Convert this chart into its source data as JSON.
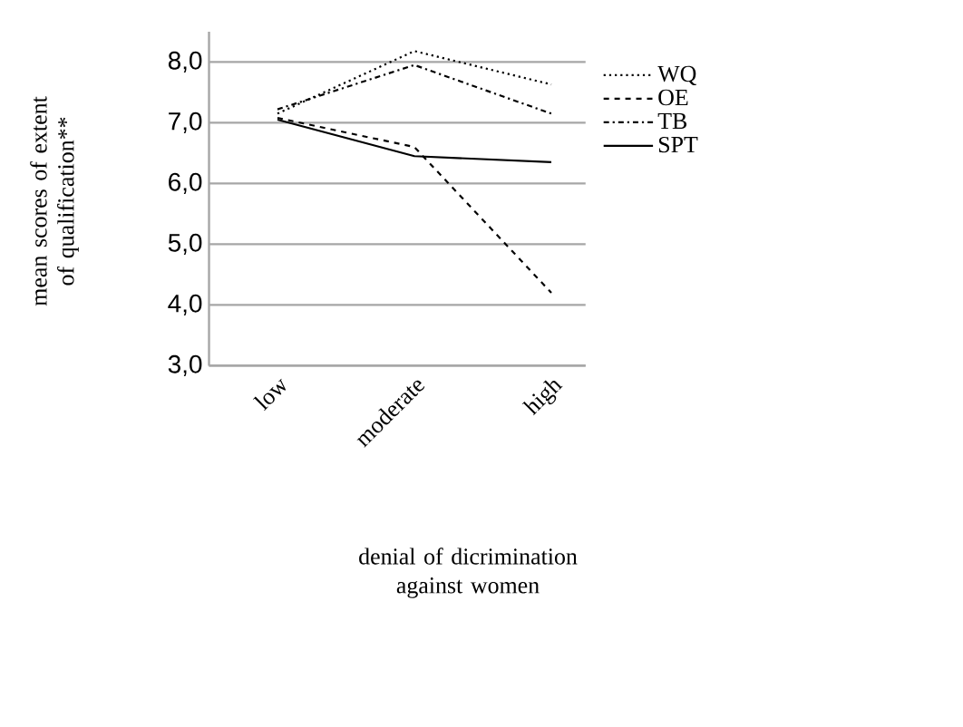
{
  "chart_data": {
    "type": "line",
    "ylabel": "mean scores of extent of qualification**",
    "xlabel": "denial of dicrimination against women",
    "categories": [
      "low",
      "moderate",
      "high"
    ],
    "series": [
      {
        "name": "WQ",
        "color": "#000000",
        "line_style": "dotted",
        "values": [
          7.15,
          8.18,
          7.63
        ]
      },
      {
        "name": "OE",
        "color": "#000000",
        "line_style": "dashed",
        "values": [
          7.08,
          6.6,
          4.2
        ]
      },
      {
        "name": "TB",
        "color": "#000000",
        "line_style": "dashdot",
        "values": [
          7.22,
          7.95,
          7.15
        ]
      },
      {
        "name": "SPT",
        "color": "#000000",
        "line_style": "solid",
        "values": [
          7.05,
          6.45,
          6.35
        ]
      }
    ],
    "ylim": [
      3,
      8.5
    ],
    "yticks": [
      {
        "value": 3,
        "label": "3,0"
      },
      {
        "value": 4,
        "label": "4,0"
      },
      {
        "value": 5,
        "label": "5,0"
      },
      {
        "value": 6,
        "label": "6,0"
      },
      {
        "value": 7,
        "label": "7,0"
      },
      {
        "value": 8,
        "label": "8,0"
      }
    ],
    "grid": "y",
    "legend": "right"
  }
}
